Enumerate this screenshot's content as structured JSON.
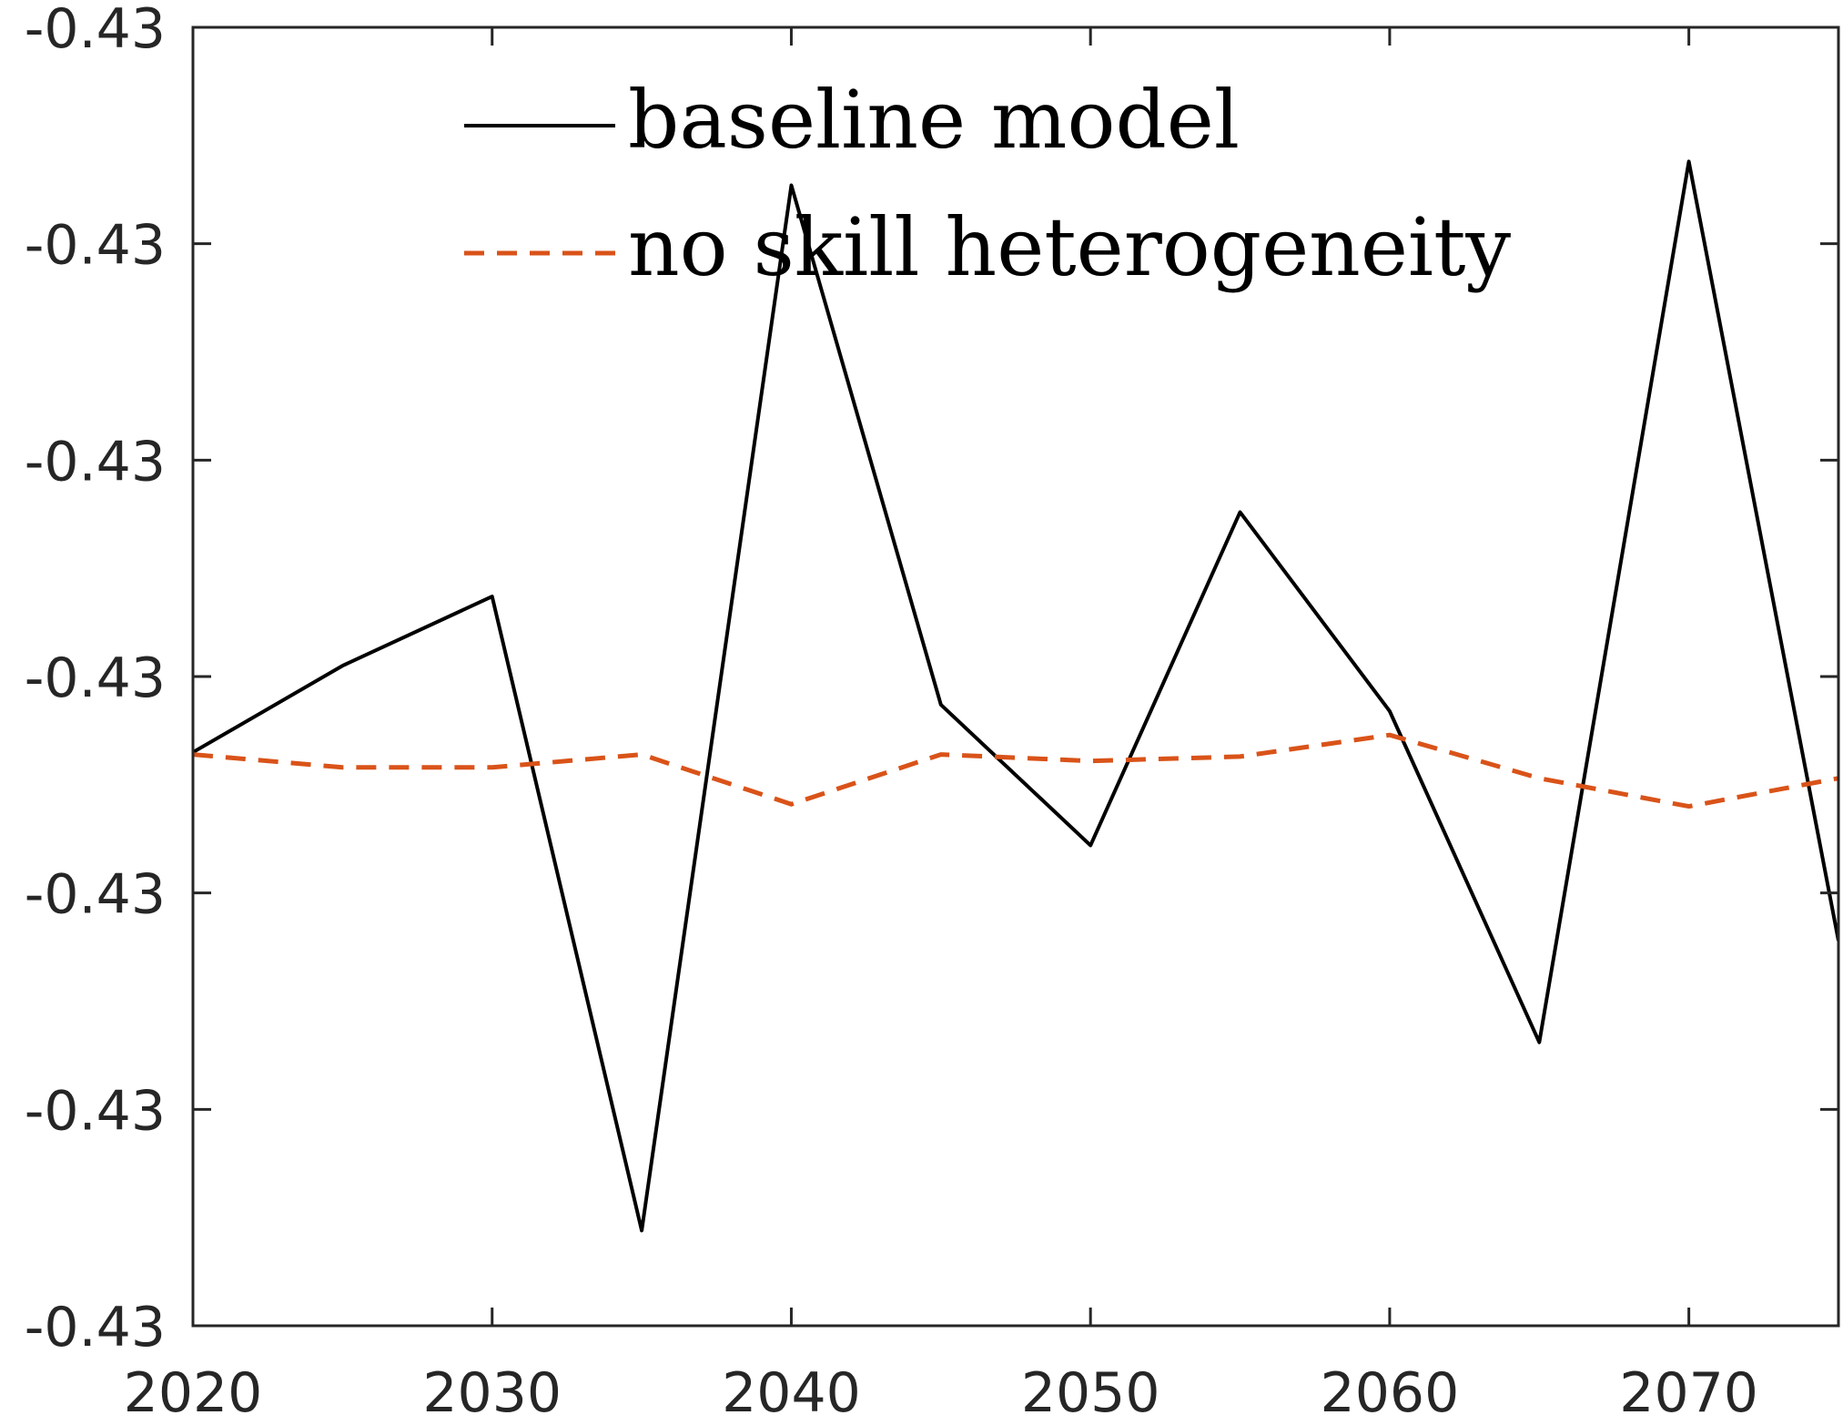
{
  "chart_data": {
    "type": "line",
    "title": "",
    "xlabel": "",
    "ylabel": "",
    "x": [
      2020,
      2025,
      2030,
      2035,
      2040,
      2045,
      2050,
      2055,
      2060,
      2065,
      2070,
      2075
    ],
    "xlim": [
      2020,
      2075
    ],
    "x_ticks": [
      2020,
      2030,
      2040,
      2050,
      2060,
      2070
    ],
    "x_tick_labels": [
      "2020",
      "2030",
      "2040",
      "2050",
      "2060",
      "2070"
    ],
    "ylim": [
      0,
      6
    ],
    "y_ticks": [
      0,
      1,
      2,
      3,
      4,
      5,
      6
    ],
    "y_tick_labels": [
      "-0.43",
      "-0.43",
      "-0.43",
      "-0.43",
      "-0.43",
      "-0.43",
      "-0.43"
    ],
    "grid": false,
    "legend_position": "top",
    "series": [
      {
        "name": "baseline model",
        "style": "solid",
        "color": "#000000",
        "values": [
          2.65,
          3.05,
          3.37,
          0.44,
          5.27,
          2.87,
          2.22,
          3.76,
          2.84,
          1.31,
          5.38,
          1.78
        ]
      },
      {
        "name": "no skill heterogeneity",
        "style": "dashed",
        "color": "#D95319",
        "values": [
          2.64,
          2.58,
          2.58,
          2.64,
          2.41,
          2.64,
          2.61,
          2.63,
          2.73,
          2.53,
          2.4,
          2.53
        ]
      }
    ]
  }
}
